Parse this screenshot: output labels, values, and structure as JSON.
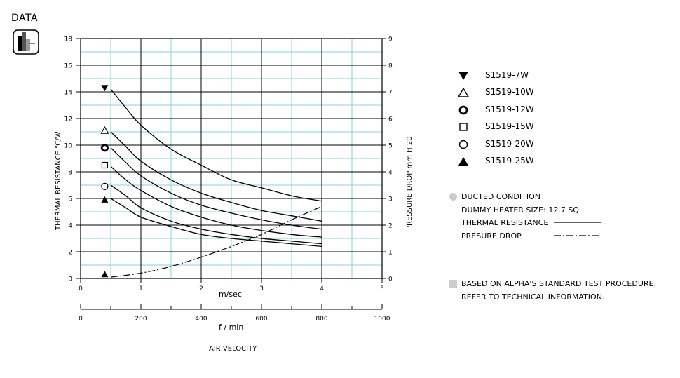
{
  "header": {
    "tag": "DATA",
    "badge_icon": "bar-chart-icon"
  },
  "chart_data": {
    "type": "line",
    "xlabel_top": "m/sec",
    "xlabel_bottom": "f / min",
    "xlabel_caption": "AIR VELOCITY",
    "ylabel_left": "THERMAL  RESISTANCE   ℃/W",
    "ylabel_right": "PRESSURE  DROP      mm H 20",
    "xlim": [
      0,
      5
    ],
    "ylim_left": [
      0,
      18
    ],
    "ylim_right": [
      0,
      9
    ],
    "x_ticks": [
      "0",
      "1",
      "2",
      "3",
      "4",
      "5"
    ],
    "x_ticks_fmin": [
      "0",
      "200",
      "400",
      "600",
      "800",
      "1000"
    ],
    "y_ticks_left": [
      "0",
      "2",
      "4",
      "6",
      "8",
      "10",
      "12",
      "14",
      "16",
      "18"
    ],
    "y_ticks_right": [
      "0",
      "1",
      "2",
      "3",
      "4",
      "5",
      "6",
      "7",
      "8",
      "9"
    ],
    "grid": true,
    "series": [
      {
        "name": "S1519-7W",
        "marker": "filled-triangle-down",
        "marker_y": 14.3,
        "x": [
          0.5,
          0.75,
          1.0,
          1.5,
          2.0,
          2.5,
          3.0,
          3.5,
          4.0
        ],
        "y": [
          14.2,
          12.8,
          11.5,
          9.7,
          8.5,
          7.4,
          6.8,
          6.2,
          5.8
        ]
      },
      {
        "name": "S1519-10W",
        "marker": "open-triangle-up",
        "marker_y": 11.1,
        "x": [
          0.5,
          0.75,
          1.0,
          1.5,
          2.0,
          2.5,
          3.0,
          3.5,
          4.0
        ],
        "y": [
          11.0,
          9.9,
          8.8,
          7.4,
          6.4,
          5.7,
          5.1,
          4.7,
          4.3
        ]
      },
      {
        "name": "S1519-12W",
        "marker": "bold-circle",
        "marker_y": 9.8,
        "x": [
          0.5,
          0.75,
          1.0,
          1.5,
          2.0,
          2.5,
          3.0,
          3.5,
          4.0
        ],
        "y": [
          9.8,
          8.7,
          7.7,
          6.4,
          5.5,
          4.9,
          4.4,
          4.0,
          3.7
        ]
      },
      {
        "name": "S1519-15W",
        "marker": "open-square",
        "marker_y": 8.5,
        "x": [
          0.5,
          0.75,
          1.0,
          1.5,
          2.0,
          2.5,
          3.0,
          3.5,
          4.0
        ],
        "y": [
          8.4,
          7.4,
          6.6,
          5.4,
          4.6,
          4.0,
          3.6,
          3.3,
          3.1
        ]
      },
      {
        "name": "S1519-20W",
        "marker": "open-circle",
        "marker_y": 6.9,
        "x": [
          0.5,
          0.75,
          1.0,
          1.5,
          2.0,
          2.5,
          3.0,
          3.5,
          4.0
        ],
        "y": [
          7.0,
          6.2,
          5.3,
          4.3,
          3.7,
          3.3,
          3.0,
          2.8,
          2.6
        ]
      },
      {
        "name": "S1519-25W",
        "marker": "filled-triangle-up",
        "marker_y": 5.9,
        "x": [
          0.5,
          0.75,
          1.0,
          1.5,
          2.0,
          2.5,
          3.0,
          3.5,
          4.0
        ],
        "y": [
          6.0,
          5.3,
          4.6,
          3.9,
          3.3,
          3.0,
          2.8,
          2.6,
          2.4
        ]
      }
    ],
    "pressure_drop": {
      "marker": "filled-triangle-up",
      "marker_y_left": 0.3,
      "x": [
        0.5,
        1.0,
        1.5,
        2.0,
        2.5,
        3.0,
        3.5,
        4.0
      ],
      "y_right": [
        0.05,
        0.2,
        0.45,
        0.8,
        1.2,
        1.65,
        2.2,
        2.7
      ]
    }
  },
  "notes": {
    "ducted": "DUCTED CONDITION",
    "heater": "DUMMY HEATER SIZE: 12.7 SQ",
    "thermal": "THERMAL RESISTANCE",
    "pressure": "PRESURE DROP",
    "based": "BASED ON ALPHA'S STANDARD TEST PROCEDURE.",
    "refer": "REFER TO TECHNICAL INFORMATION."
  }
}
